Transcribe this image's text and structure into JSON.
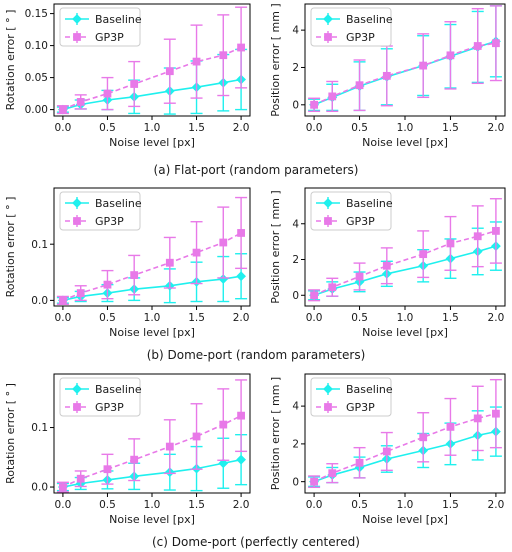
{
  "chart_data": [
    {
      "type": "line",
      "ylabel": "Rotation error [ ° ]",
      "xlabel": "Noise level [px]",
      "xlim": [
        -0.1,
        2.1
      ],
      "ylim": [
        -0.01,
        0.165
      ],
      "xticks": [
        "0.0",
        "0.5",
        "1.0",
        "1.5",
        "2.0"
      ],
      "yticks": [
        "0.00",
        "0.05",
        "0.10",
        "0.15"
      ],
      "legend_position": "top-left",
      "x": [
        0.0,
        0.2,
        0.5,
        0.8,
        1.2,
        1.5,
        1.8,
        2.0
      ],
      "series": [
        {
          "name": "Baseline",
          "color": "#1ff0ee",
          "marker": "diamond",
          "values": [
            0.0,
            0.008,
            0.015,
            0.02,
            0.029,
            0.035,
            0.042,
            0.047
          ],
          "err": [
            0.004,
            0.007,
            0.015,
            0.026,
            0.036,
            0.041,
            0.044,
            0.047
          ]
        },
        {
          "name": "GP3P",
          "color": "#e879e8",
          "marker": "square",
          "values": [
            0.0,
            0.012,
            0.025,
            0.04,
            0.06,
            0.075,
            0.085,
            0.097
          ],
          "err": [
            0.006,
            0.011,
            0.025,
            0.035,
            0.05,
            0.057,
            0.063,
            0.063
          ]
        }
      ]
    },
    {
      "type": "line",
      "ylabel": "Position error [ mm ]",
      "xlabel": "Noise level [px]",
      "xlim": [
        -0.1,
        2.1
      ],
      "ylim": [
        -0.6,
        5.4
      ],
      "xticks": [
        "0.0",
        "0.5",
        "1.0",
        "1.5",
        "2.0"
      ],
      "yticks": [
        "0",
        "2",
        "4"
      ],
      "legend_position": "top-left",
      "x": [
        0.0,
        0.2,
        0.5,
        0.8,
        1.2,
        1.5,
        1.8,
        2.0
      ],
      "series": [
        {
          "name": "Baseline",
          "color": "#1ff0ee",
          "marker": "diamond",
          "values": [
            0.0,
            0.4,
            1.0,
            1.5,
            2.1,
            2.6,
            3.1,
            3.4
          ],
          "err": [
            0.3,
            0.7,
            1.3,
            1.5,
            1.6,
            1.7,
            1.9,
            1.9
          ]
        },
        {
          "name": "GP3P",
          "color": "#e879e8",
          "marker": "square",
          "values": [
            0.0,
            0.45,
            1.05,
            1.55,
            2.1,
            2.65,
            3.15,
            3.3
          ],
          "err": [
            0.35,
            0.8,
            1.35,
            1.6,
            1.7,
            1.8,
            2.0,
            2.0
          ]
        }
      ]
    },
    {
      "type": "line",
      "ylabel": "Rotation error [ ° ]",
      "xlabel": "Noise level [px]",
      "xlim": [
        -0.1,
        2.1
      ],
      "ylim": [
        -0.01,
        0.2
      ],
      "xticks": [
        "0.0",
        "0.5",
        "1.0",
        "1.5",
        "2.0"
      ],
      "yticks": [
        "0.0",
        "0.1"
      ],
      "legend_position": "top-left",
      "x": [
        0.0,
        0.2,
        0.5,
        0.8,
        1.2,
        1.5,
        1.8,
        2.0
      ],
      "series": [
        {
          "name": "Baseline",
          "color": "#1ff0ee",
          "marker": "diamond",
          "values": [
            0.0,
            0.007,
            0.013,
            0.02,
            0.026,
            0.033,
            0.038,
            0.043
          ],
          "err": [
            0.005,
            0.009,
            0.015,
            0.02,
            0.03,
            0.035,
            0.04,
            0.04
          ]
        },
        {
          "name": "GP3P",
          "color": "#e879e8",
          "marker": "square",
          "values": [
            0.0,
            0.013,
            0.028,
            0.045,
            0.067,
            0.085,
            0.103,
            0.12
          ],
          "err": [
            0.007,
            0.013,
            0.025,
            0.035,
            0.045,
            0.055,
            0.063,
            0.063
          ]
        }
      ]
    },
    {
      "type": "line",
      "ylabel": "Position error [ mm ]",
      "xlabel": "Noise level [px]",
      "xlim": [
        -0.1,
        2.1
      ],
      "ylim": [
        -0.6,
        6.0
      ],
      "xticks": [
        "0.0",
        "0.5",
        "1.0",
        "1.5",
        "2.0"
      ],
      "yticks": [
        "0",
        "2",
        "4"
      ],
      "legend_position": "top-left",
      "x": [
        0.0,
        0.2,
        0.5,
        0.8,
        1.2,
        1.5,
        1.8,
        2.0
      ],
      "series": [
        {
          "name": "Baseline",
          "color": "#1ff0ee",
          "marker": "diamond",
          "values": [
            0.0,
            0.35,
            0.75,
            1.2,
            1.65,
            2.05,
            2.45,
            2.75
          ],
          "err": [
            0.25,
            0.4,
            0.55,
            0.7,
            0.9,
            1.1,
            1.3,
            1.35
          ]
        },
        {
          "name": "GP3P",
          "color": "#e879e8",
          "marker": "square",
          "values": [
            0.0,
            0.45,
            1.05,
            1.65,
            2.3,
            2.9,
            3.3,
            3.6
          ],
          "err": [
            0.3,
            0.5,
            0.75,
            1.0,
            1.3,
            1.5,
            1.7,
            1.8
          ]
        }
      ]
    },
    {
      "type": "line",
      "ylabel": "Rotation error [ ° ]",
      "xlabel": "Noise level [px]",
      "xlim": [
        -0.1,
        2.1
      ],
      "ylim": [
        -0.01,
        0.19
      ],
      "xticks": [
        "0.0",
        "0.5",
        "1.0",
        "1.5",
        "2.0"
      ],
      "yticks": [
        "0.0",
        "0.1"
      ],
      "legend_position": "top-left",
      "x": [
        0.0,
        0.2,
        0.5,
        0.8,
        1.2,
        1.5,
        1.8,
        2.0
      ],
      "series": [
        {
          "name": "Baseline",
          "color": "#1ff0ee",
          "marker": "diamond",
          "values": [
            0.0,
            0.006,
            0.012,
            0.018,
            0.025,
            0.031,
            0.04,
            0.046
          ],
          "err": [
            0.006,
            0.01,
            0.015,
            0.022,
            0.03,
            0.037,
            0.042,
            0.042
          ]
        },
        {
          "name": "GP3P",
          "color": "#e879e8",
          "marker": "square",
          "values": [
            0.0,
            0.014,
            0.03,
            0.046,
            0.068,
            0.085,
            0.105,
            0.12
          ],
          "err": [
            0.008,
            0.013,
            0.025,
            0.035,
            0.045,
            0.055,
            0.06,
            0.06
          ]
        }
      ]
    },
    {
      "type": "line",
      "ylabel": "Position error [ mm ]",
      "xlabel": "Noise level [px]",
      "xlim": [
        -0.1,
        2.1
      ],
      "ylim": [
        -0.6,
        5.7
      ],
      "xticks": [
        "0.0",
        "0.5",
        "1.0",
        "1.5",
        "2.0"
      ],
      "yticks": [
        "0",
        "2",
        "4"
      ],
      "legend_position": "top-left",
      "x": [
        0.0,
        0.2,
        0.5,
        0.8,
        1.2,
        1.5,
        1.8,
        2.0
      ],
      "series": [
        {
          "name": "Baseline",
          "color": "#1ff0ee",
          "marker": "diamond",
          "values": [
            0.0,
            0.35,
            0.75,
            1.2,
            1.65,
            2.0,
            2.45,
            2.65
          ],
          "err": [
            0.25,
            0.4,
            0.55,
            0.7,
            0.9,
            1.1,
            1.3,
            1.3
          ]
        },
        {
          "name": "GP3P",
          "color": "#e879e8",
          "marker": "square",
          "values": [
            0.0,
            0.45,
            1.0,
            1.6,
            2.35,
            2.9,
            3.35,
            3.6
          ],
          "err": [
            0.3,
            0.5,
            0.8,
            1.0,
            1.3,
            1.5,
            1.7,
            1.8
          ]
        }
      ]
    }
  ],
  "captions": [
    "(a) Flat-port (random parameters)",
    "(b) Dome-port (random parameters)",
    "(c) Dome-port (perfectly centered)"
  ]
}
